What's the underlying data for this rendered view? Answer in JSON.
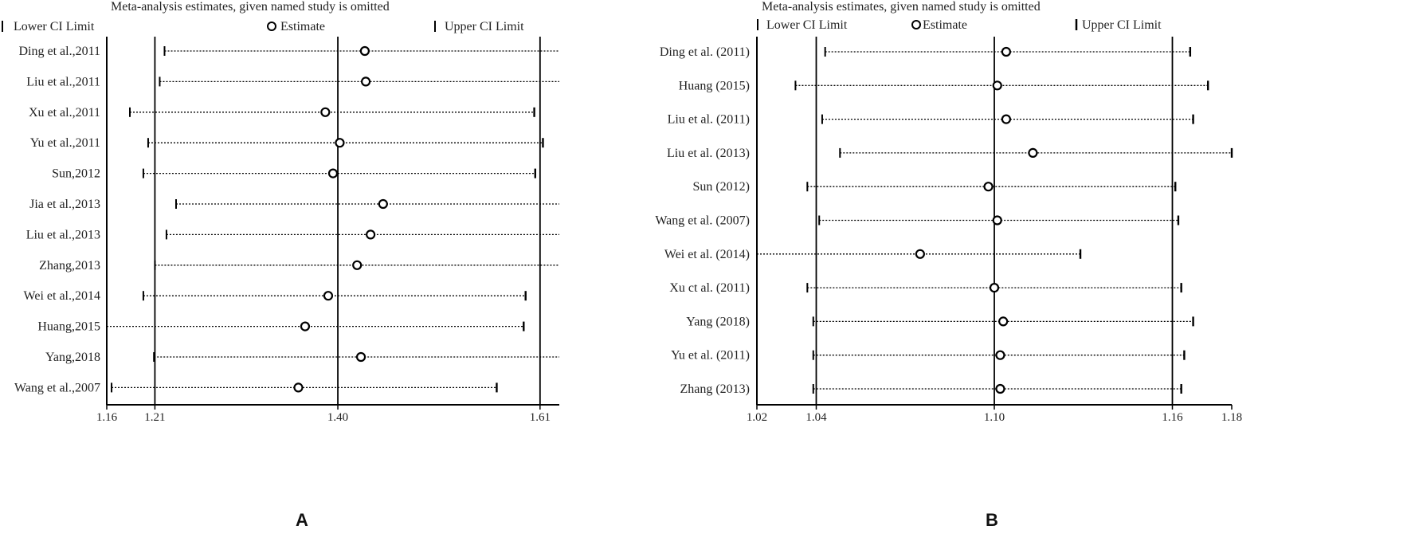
{
  "chart_data": [
    {
      "type": "scatter",
      "panel_label": "A",
      "title": "Meta‐analysis estimates, given named study is omitted",
      "legend": {
        "lower": "Lower CI Limit",
        "estimate": "Estimate",
        "upper": "Upper CI Limit"
      },
      "xlim": [
        1.16,
        1.63
      ],
      "ticks": [
        "1.16",
        "1.21",
        "1.40",
        "1.61"
      ],
      "ref_lines": [
        1.21,
        1.4,
        1.61
      ],
      "studies": [
        {
          "label": "Ding et al.,2011",
          "lower": 1.22,
          "estimate": 1.428,
          "upper": 1.63,
          "upper_capped": false
        },
        {
          "label": "Liu et al.,2011",
          "lower": 1.215,
          "estimate": 1.429,
          "upper": 1.63,
          "upper_capped": false
        },
        {
          "label": "Xu et al.,2011",
          "lower": 1.184,
          "estimate": 1.387,
          "upper": 1.604,
          "upper_capped": true
        },
        {
          "label": "Yu et al.,2011",
          "lower": 1.203,
          "estimate": 1.402,
          "upper": 1.613,
          "upper_capped": true
        },
        {
          "label": "Sun,2012",
          "lower": 1.198,
          "estimate": 1.395,
          "upper": 1.605,
          "upper_capped": true
        },
        {
          "label": "Jia et al.,2013",
          "lower": 1.232,
          "estimate": 1.447,
          "upper": 1.63,
          "upper_capped": false
        },
        {
          "label": "Liu et al.,2013",
          "lower": 1.222,
          "estimate": 1.434,
          "upper": 1.63,
          "upper_capped": false
        },
        {
          "label": "Zhang,2013",
          "lower": 1.21,
          "estimate": 1.42,
          "upper": 1.63,
          "upper_capped": false
        },
        {
          "label": "Wei et al.,2014",
          "lower": 1.198,
          "estimate": 1.39,
          "upper": 1.595,
          "upper_capped": true
        },
        {
          "label": "Huang,2015",
          "lower": 1.16,
          "estimate": 1.366,
          "upper": 1.593,
          "upper_capped": true
        },
        {
          "label": "Yang,2018",
          "lower": 1.209,
          "estimate": 1.424,
          "upper": 1.63,
          "upper_capped": false
        },
        {
          "label": "Wang et al.,2007",
          "lower": 1.165,
          "estimate": 1.359,
          "upper": 1.565,
          "upper_capped": true
        }
      ]
    },
    {
      "type": "scatter",
      "panel_label": "B",
      "title": "Meta‐analysis estimates, given named study is omitted",
      "legend": {
        "lower": "Lower CI Limit",
        "estimate": "Estimate",
        "upper": "Upper CI Limit"
      },
      "xlim": [
        1.02,
        1.18
      ],
      "ticks": [
        "1.02",
        "1.04",
        "1.10",
        "1.16",
        "1.18"
      ],
      "ref_lines": [
        1.04,
        1.1,
        1.16
      ],
      "studies": [
        {
          "label": "Ding et al. (2011)",
          "lower": 1.043,
          "estimate": 1.104,
          "upper": 1.166,
          "upper_capped": true
        },
        {
          "label": "Huang (2015)",
          "lower": 1.033,
          "estimate": 1.101,
          "upper": 1.172,
          "upper_capped": true
        },
        {
          "label": "Liu et al. (2011)",
          "lower": 1.042,
          "estimate": 1.104,
          "upper": 1.167,
          "upper_capped": true
        },
        {
          "label": "Liu et al. (2013)",
          "lower": 1.048,
          "estimate": 1.113,
          "upper": 1.18,
          "upper_capped": true
        },
        {
          "label": "Sun (2012)",
          "lower": 1.037,
          "estimate": 1.098,
          "upper": 1.161,
          "upper_capped": true
        },
        {
          "label": "Wang et al. (2007)",
          "lower": 1.041,
          "estimate": 1.101,
          "upper": 1.162,
          "upper_capped": true
        },
        {
          "label": "Wei et al. (2014)",
          "lower": 1.02,
          "estimate": 1.075,
          "upper": 1.129,
          "upper_capped": true
        },
        {
          "label": "Xu ct al. (2011)",
          "lower": 1.037,
          "estimate": 1.1,
          "upper": 1.163,
          "upper_capped": true
        },
        {
          "label": "Yang (2018)",
          "lower": 1.039,
          "estimate": 1.103,
          "upper": 1.167,
          "upper_capped": true
        },
        {
          "label": "Yu et al. (2011)",
          "lower": 1.039,
          "estimate": 1.102,
          "upper": 1.164,
          "upper_capped": true
        },
        {
          "label": "Zhang (2013)",
          "lower": 1.039,
          "estimate": 1.102,
          "upper": 1.163,
          "upper_capped": true
        }
      ]
    }
  ]
}
